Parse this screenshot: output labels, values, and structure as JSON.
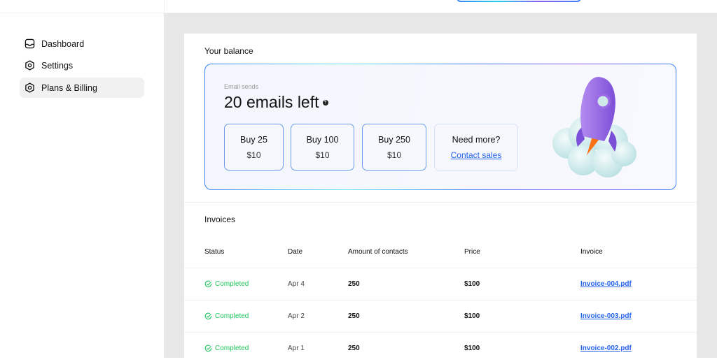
{
  "sidebar": {
    "items": [
      {
        "label": "Dashboard",
        "icon": "inbox-icon"
      },
      {
        "label": "Settings",
        "icon": "hexagon-gear-icon"
      },
      {
        "label": "Plans & Billing",
        "icon": "hexagon-gear-icon",
        "active": true
      }
    ]
  },
  "balance": {
    "title": "Your balance",
    "subtitle": "Email sends",
    "remaining": "20 emails left",
    "help_icon": "?",
    "options": [
      {
        "label": "Buy 25",
        "price": "$10"
      },
      {
        "label": "Buy 100",
        "price": "$10"
      },
      {
        "label": "Buy 250",
        "price": "$10"
      }
    ],
    "more": {
      "label": "Need more?",
      "link": "Contact sales"
    }
  },
  "invoices": {
    "title": "Invoices",
    "columns": [
      "Status",
      "Date",
      "Amount of contacts",
      "Price",
      "Invoice"
    ],
    "rows": [
      {
        "status": "Completed",
        "date": "Apr 4",
        "amount": "250",
        "price": "$100",
        "invoice": "Invoice-004.pdf"
      },
      {
        "status": "Completed",
        "date": "Apr 2",
        "amount": "250",
        "price": "$100",
        "invoice": "Invoice-003.pdf"
      },
      {
        "status": "Completed",
        "date": "Apr 1",
        "amount": "250",
        "price": "$100",
        "invoice": "Invoice-002.pdf"
      }
    ]
  },
  "colors": {
    "accent": "#2563eb",
    "success": "#22c55e",
    "rocket": "#8b5cf6"
  }
}
